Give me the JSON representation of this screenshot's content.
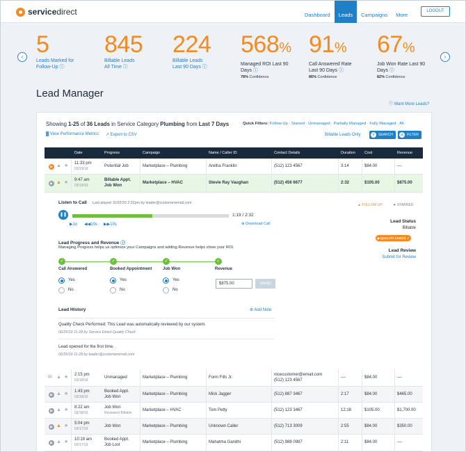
{
  "brand": {
    "name_bold": "service",
    "name_rest": "direct"
  },
  "nav": {
    "items": [
      "Dashboard",
      "Leads",
      "Campaigns",
      "More"
    ],
    "active": "Leads",
    "logout": "LOGOUT"
  },
  "stats": [
    {
      "value": "5",
      "label1": "Leads Marked for",
      "label2": "Follow-Up",
      "style": "blue"
    },
    {
      "value": "845",
      "label1": "Billable Leads",
      "label2": "All Time",
      "style": "blue"
    },
    {
      "value": "224",
      "label1": "Billable Leads",
      "label2": "Last 90 Days",
      "style": "blue"
    },
    {
      "value": "568",
      "pct": "%",
      "label1": "Managed ROI Last 90",
      "label2": "Days",
      "conf_value": "78%",
      "conf_label": "Confidence"
    },
    {
      "value": "91",
      "pct": "%",
      "label1": "Call Answered Rate",
      "label2": "Last 90 Days",
      "conf_value": "86%",
      "conf_label": "Confidence"
    },
    {
      "value": "67",
      "pct": "%",
      "label1": "Job Won Rate Last 90",
      "label2": "Days",
      "conf_value": "82%",
      "conf_label": "Confidence"
    }
  ],
  "lead_manager": {
    "title": "Lead Manager",
    "want_more": "Want More Leads?",
    "showing": {
      "prefix": "Showing ",
      "range": "1-25",
      "of": " of ",
      "count": "36 Leads",
      "in_cat": " in Service Category ",
      "category": "Plumbing",
      "from": " from ",
      "period": "Last 7 Days"
    },
    "quick_filters_label": "Quick Filters:",
    "quick_filters": "Follow-Up · Starred · Unmanaged · Partially Managed · Fully Managed · All",
    "view_metrics": "View Performance Metrics",
    "export": "Export to CSV",
    "billable_only": "Billable Leads Only",
    "search": "SEARCH",
    "filter": "FILTER"
  },
  "table": {
    "headers": [
      "Date",
      "Progress",
      "Campaign",
      "Name / Caller ID",
      "Contact Details",
      "Duration",
      "Cost",
      "Revenue"
    ],
    "top_rows": [
      {
        "time": "11:33 pm",
        "date": "03/19/19",
        "progress": "Potential Job",
        "campaign": "Marketplace – Plumbing",
        "name": "Aretha Franklin",
        "contact": "(512) 123 4567",
        "duration": "3:14",
        "cost": "$84.00",
        "revenue": "––"
      },
      {
        "time": "9:47 am",
        "date": "03/19/19",
        "progress": "Billable Appt.",
        "progress2": "Job Won",
        "campaign": "Marketplace – HVAC",
        "name": "Stevie Ray Vaughan",
        "contact": "(512) 456 6677",
        "duration": "2:32",
        "cost": "$105.00",
        "revenue": "$875.00"
      }
    ],
    "bottom_rows": [
      {
        "time": "2:15 pm",
        "date": "03/18/19",
        "progress": "Unmanaged",
        "campaign": "Marketplace – Plumbing",
        "name": "Form Fills Jr.",
        "contact": "nicecustomer@email.com",
        "contact2": "(512) 123 4567",
        "duration": "––",
        "cost": "$84.00",
        "revenue": "––"
      },
      {
        "time": "1:43 pm",
        "date": "03/18/19",
        "progress": "Booked Appt.",
        "progress2": "Job Won",
        "campaign": "Marketplace – Plumbing",
        "name": "Mick Jagger",
        "contact": "(512) 887 3467",
        "duration": "2:17",
        "cost": "$84.00",
        "revenue": "$465.00"
      },
      {
        "time": "8:22 am",
        "date": "03/18/19",
        "progress": "Job Won",
        "progress_note": "Reviewed Billable",
        "campaign": "Marketplace – HVAC",
        "name": "Tom Petty",
        "contact": "(512) 123 3467",
        "duration": "12:18",
        "cost": "$105.00",
        "revenue": "$1,700.00"
      },
      {
        "time": "5:04 pm",
        "date": "03/17/19",
        "progress": "Job Won",
        "campaign": "Marketplace – Plumbing",
        "name": "Unknown Caller",
        "contact": "(512) 713 3009",
        "duration": "2:55",
        "cost": "$84.00",
        "revenue": "$350.00"
      },
      {
        "time": "10:19 am",
        "date": "03/17/19",
        "progress": "Booked Appt.",
        "progress2": "Job Lost",
        "campaign": "Marketplace – Plumbing",
        "name": "Mahatma Gandhi",
        "contact": "(512) 988 0987",
        "duration": "2:11",
        "cost": "$84.00",
        "revenue": "––"
      }
    ]
  },
  "detail": {
    "listen": "Listen to Call",
    "last_played": "Last played 11/02/20 2:32pm by leader@customeremail.com",
    "time": "1:19 / 2:32",
    "progress_fraction": 0.51,
    "speeds": [
      "1x",
      "10s",
      "10s"
    ],
    "download": "Download Call",
    "follow_up": "FOLLOW UP",
    "starred": "STARRED",
    "lead_status_label": "Lead Status",
    "lead_status_value": "Billable",
    "quality_check": "QUALITY CHECK",
    "lead_review_label": "Lead Review",
    "lead_review_link": "Submit for Review",
    "progress_title": "Lead Progress and Revenue",
    "progress_desc": "Managing Progress helps us optimize your Campaigns and adding Revenue helps show your ROI.",
    "steps": [
      "Call Answered",
      "Booked Appointment",
      "Job Won",
      "Revenue"
    ],
    "yes": "Yes",
    "no": "No",
    "revenue_value": "$875.00",
    "saved": "SAVED",
    "history_title": "Lead History",
    "add_note": "Add Note",
    "history": [
      {
        "text": "Quality Check Performed: This Lead was automatically reviewed by our system.",
        "sub": "06/25/19 11:28 by Service Direct Quality Check"
      },
      {
        "text": "Lead opened for the first time.",
        "sub": "06/25/19 11:28 by leader@customeremail.com"
      }
    ]
  }
}
